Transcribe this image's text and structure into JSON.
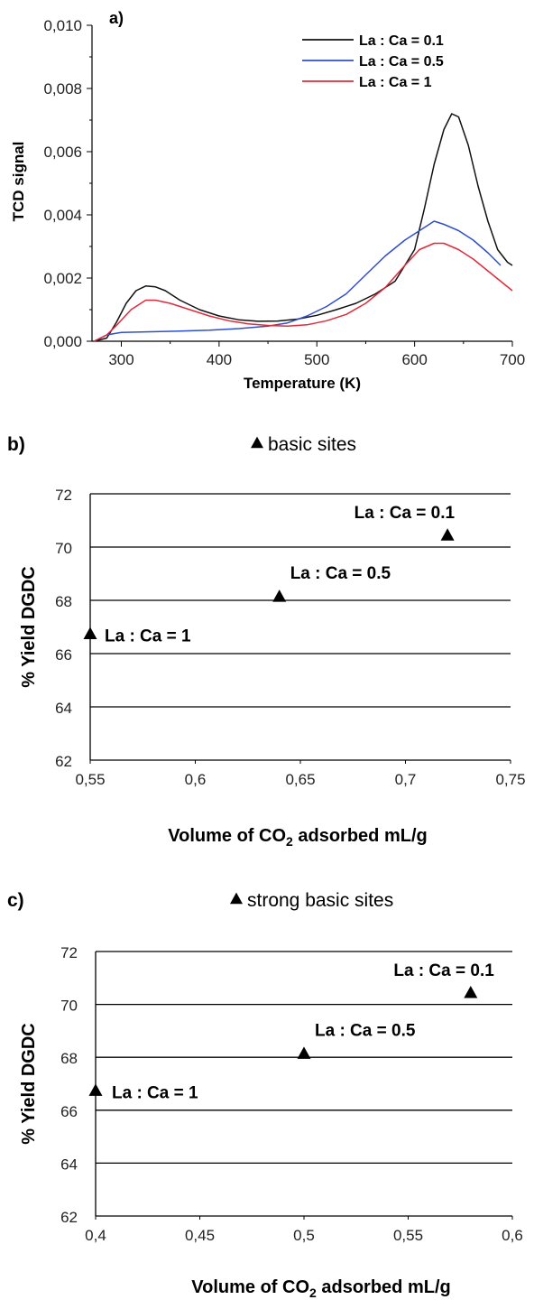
{
  "chart_data": [
    {
      "type": "line",
      "panel_label": "a)",
      "xlabel": "Temperature (K)",
      "ylabel": "TCD signal",
      "xlim": [
        270,
        700
      ],
      "ylim": [
        0,
        0.01
      ],
      "x_ticks": [
        "300",
        "400",
        "500",
        "600",
        "700"
      ],
      "y_ticks": [
        "0,000",
        "0,002",
        "0,004",
        "0,006",
        "0,008",
        "0,010"
      ],
      "legend_position": "top-right",
      "series": [
        {
          "name": "La : Ca = 0.1",
          "color": "#111111",
          "points": [
            [
              272,
              0.0
            ],
            [
              285,
              0.0001
            ],
            [
              295,
              0.0006
            ],
            [
              305,
              0.0012
            ],
            [
              315,
              0.0016
            ],
            [
              325,
              0.00175
            ],
            [
              335,
              0.00172
            ],
            [
              345,
              0.0016
            ],
            [
              360,
              0.0013
            ],
            [
              380,
              0.001
            ],
            [
              400,
              0.0008
            ],
            [
              420,
              0.00068
            ],
            [
              440,
              0.00063
            ],
            [
              460,
              0.00064
            ],
            [
              480,
              0.0007
            ],
            [
              500,
              0.00082
            ],
            [
              520,
              0.001
            ],
            [
              540,
              0.0012
            ],
            [
              560,
              0.0015
            ],
            [
              580,
              0.0019
            ],
            [
              600,
              0.0029
            ],
            [
              610,
              0.0042
            ],
            [
              620,
              0.0056
            ],
            [
              630,
              0.0067
            ],
            [
              638,
              0.0072
            ],
            [
              645,
              0.0071
            ],
            [
              655,
              0.0062
            ],
            [
              665,
              0.0049
            ],
            [
              675,
              0.0038
            ],
            [
              685,
              0.0029
            ],
            [
              695,
              0.0025
            ],
            [
              700,
              0.0024
            ]
          ]
        },
        {
          "name": "La : Ca = 0.5",
          "color": "#2f4fc8",
          "points": [
            [
              272,
              0.0
            ],
            [
              285,
              0.0002
            ],
            [
              300,
              0.00028
            ],
            [
              330,
              0.0003
            ],
            [
              360,
              0.00032
            ],
            [
              390,
              0.00035
            ],
            [
              420,
              0.0004
            ],
            [
              450,
              0.00048
            ],
            [
              470,
              0.00058
            ],
            [
              490,
              0.0008
            ],
            [
              510,
              0.0011
            ],
            [
              530,
              0.0015
            ],
            [
              550,
              0.0021
            ],
            [
              570,
              0.0027
            ],
            [
              590,
              0.0032
            ],
            [
              610,
              0.0036
            ],
            [
              620,
              0.0038
            ],
            [
              630,
              0.0037
            ],
            [
              645,
              0.0035
            ],
            [
              660,
              0.0032
            ],
            [
              675,
              0.0028
            ],
            [
              688,
              0.0024
            ]
          ]
        },
        {
          "name": "La : Ca = 1",
          "color": "#e02a3c",
          "points": [
            [
              272,
              0.0
            ],
            [
              285,
              0.0002
            ],
            [
              295,
              0.0005
            ],
            [
              310,
              0.001
            ],
            [
              325,
              0.0013
            ],
            [
              335,
              0.0013
            ],
            [
              350,
              0.0012
            ],
            [
              370,
              0.001
            ],
            [
              390,
              0.0008
            ],
            [
              410,
              0.00065
            ],
            [
              430,
              0.00055
            ],
            [
              450,
              0.0005
            ],
            [
              470,
              0.00048
            ],
            [
              490,
              0.00052
            ],
            [
              510,
              0.00065
            ],
            [
              530,
              0.00085
            ],
            [
              550,
              0.0012
            ],
            [
              570,
              0.0017
            ],
            [
              590,
              0.0024
            ],
            [
              605,
              0.0029
            ],
            [
              620,
              0.0031
            ],
            [
              630,
              0.0031
            ],
            [
              645,
              0.0029
            ],
            [
              660,
              0.0026
            ],
            [
              680,
              0.0021
            ],
            [
              700,
              0.0016
            ]
          ]
        }
      ]
    },
    {
      "type": "scatter",
      "panel_label": "b)",
      "subtitle": "basic sites",
      "xlabel_pre": "Volume of CO",
      "xlabel_sub": "2",
      "xlabel_post": " adsorbed mL/g",
      "ylabel": "% Yield DGDC",
      "xlim": [
        0.55,
        0.75
      ],
      "ylim": [
        62,
        72
      ],
      "x_ticks": [
        "0,55",
        "0,6",
        "0,65",
        "0,7",
        "0,75"
      ],
      "y_ticks": [
        "62",
        "64",
        "66",
        "68",
        "70",
        "72"
      ],
      "grid": "horizontal",
      "marker": "triangle",
      "points": [
        {
          "x": 0.55,
          "y": 66.7,
          "label": "La : Ca = 1"
        },
        {
          "x": 0.64,
          "y": 68.1,
          "label": "La : Ca = 0.5"
        },
        {
          "x": 0.72,
          "y": 70.4,
          "label": "La : Ca = 0.1"
        }
      ]
    },
    {
      "type": "scatter",
      "panel_label": "c)",
      "subtitle": "strong basic sites",
      "xlabel_pre": "Volume of CO",
      "xlabel_sub": "2",
      "xlabel_post": " adsorbed mL/g",
      "ylabel": "% Yield DGDC",
      "xlim": [
        0.4,
        0.6
      ],
      "ylim": [
        62,
        72
      ],
      "x_ticks": [
        "0,4",
        "0,45",
        "0,5",
        "0,55",
        "0,6"
      ],
      "y_ticks": [
        "62",
        "64",
        "66",
        "68",
        "70",
        "72"
      ],
      "grid": "horizontal",
      "marker": "triangle",
      "points": [
        {
          "x": 0.4,
          "y": 66.7,
          "label": "La : Ca = 1"
        },
        {
          "x": 0.5,
          "y": 68.1,
          "label": "La : Ca = 0.5"
        },
        {
          "x": 0.58,
          "y": 70.4,
          "label": "La : Ca = 0.1"
        }
      ]
    }
  ]
}
